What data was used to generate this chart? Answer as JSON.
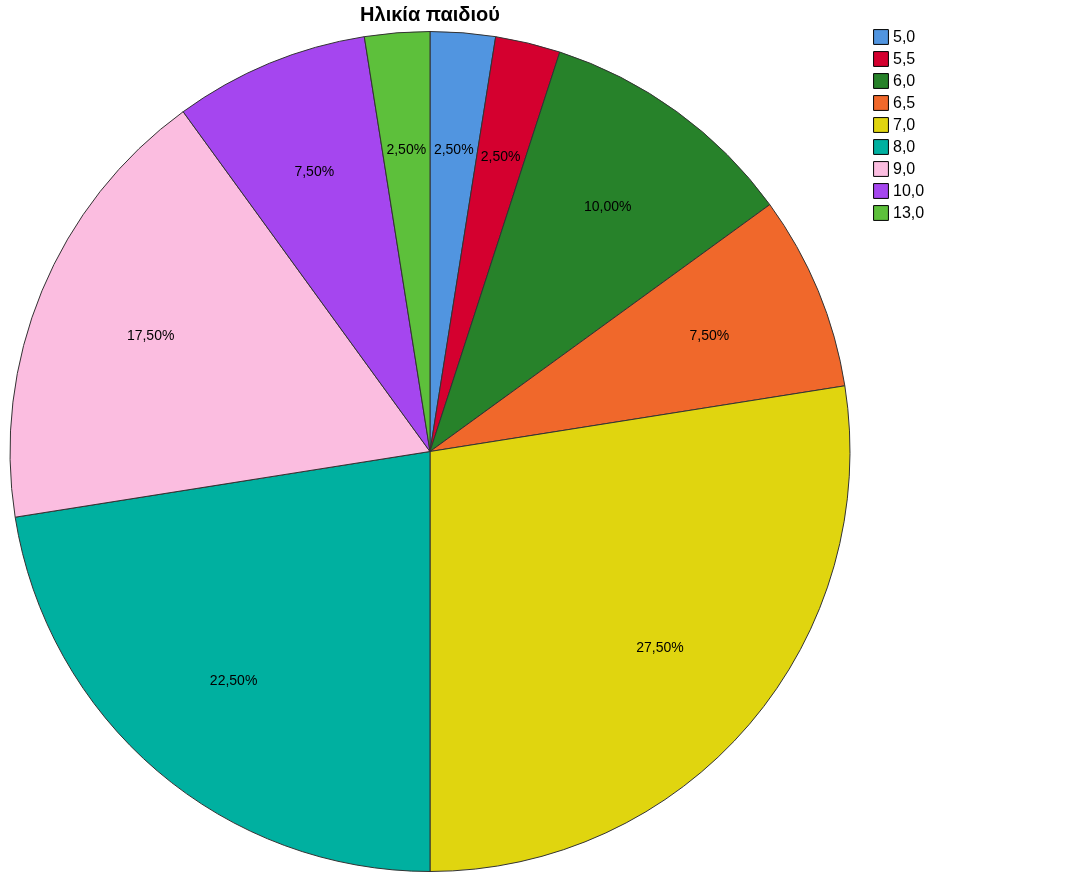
{
  "chart_data": {
    "type": "pie",
    "title": "Ηλικία παιδιού",
    "categories": [
      "5,0",
      "5,5",
      "6,0",
      "6,5",
      "7,0",
      "8,0",
      "9,0",
      "10,0",
      "13,0"
    ],
    "values": [
      2.5,
      2.5,
      10,
      7.5,
      27.5,
      22.5,
      17.5,
      7.5,
      2.5
    ],
    "value_labels": [
      "2,50%",
      "2,50%",
      "10,00%",
      "7,50%",
      "27,50%",
      "22,50%",
      "17,50%",
      "7,50%",
      "2,50%"
    ],
    "colors": [
      "#5195e0",
      "#d4002f",
      "#27822a",
      "#f0682b",
      "#e0d50f",
      "#00b0a0",
      "#fbbde0",
      "#a546ef",
      "#5dc03b"
    ],
    "legend": "top right"
  }
}
